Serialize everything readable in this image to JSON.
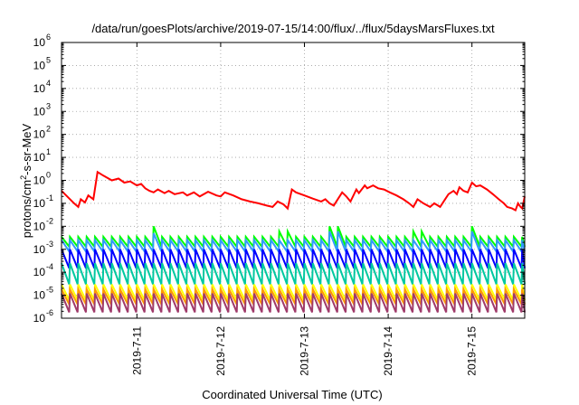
{
  "title": "/data/run/goesPlots/archive/2019-07-15/14:00/flux/../flux/5daysMarsFluxes.txt",
  "chart_data": {
    "type": "line",
    "title": "/data/run/goesPlots/archive/2019-07-15/14:00/flux/../flux/5daysMarsFluxes.txt",
    "xlabel": "Coordinated Universal Time (UTC)",
    "ylabel_parts": [
      "protons/cm",
      "2",
      "-s-sr-MeV"
    ],
    "yscale": "log",
    "ylim_exp": [
      -6,
      6
    ],
    "ytick_base": "10",
    "yticks_exp": [
      "-6",
      "-5",
      "-4",
      "-3",
      "-2",
      "-1",
      "0",
      "1",
      "2",
      "3",
      "4",
      "5",
      "6"
    ],
    "xlim_days": [
      10.1,
      15.63
    ],
    "xtick_days": [
      11,
      12,
      13,
      14,
      15
    ],
    "xtick_labels": [
      "2019-7-11",
      "2019-7-12",
      "2019-7-13",
      "2019-7-14",
      "2019-7-15"
    ],
    "grid": true,
    "series": [
      {
        "color": "#ff0000",
        "points": [
          [
            10.1,
            0.35
          ],
          [
            10.18,
            0.18
          ],
          [
            10.25,
            0.1
          ],
          [
            10.3,
            0.07
          ],
          [
            10.33,
            0.15
          ],
          [
            10.38,
            0.11
          ],
          [
            10.42,
            0.22
          ],
          [
            10.48,
            0.15
          ],
          [
            10.53,
            2.3
          ],
          [
            10.6,
            1.6
          ],
          [
            10.7,
            1.0
          ],
          [
            10.78,
            1.2
          ],
          [
            10.85,
            0.8
          ],
          [
            10.92,
            0.9
          ],
          [
            11.0,
            0.6
          ],
          [
            11.05,
            0.7
          ],
          [
            11.1,
            0.45
          ],
          [
            11.15,
            0.35
          ],
          [
            11.2,
            0.3
          ],
          [
            11.25,
            0.4
          ],
          [
            11.33,
            0.28
          ],
          [
            11.38,
            0.35
          ],
          [
            11.45,
            0.25
          ],
          [
            11.55,
            0.3
          ],
          [
            11.6,
            0.22
          ],
          [
            11.68,
            0.3
          ],
          [
            11.75,
            0.2
          ],
          [
            11.85,
            0.32
          ],
          [
            11.95,
            0.22
          ],
          [
            12.0,
            0.2
          ],
          [
            12.05,
            0.3
          ],
          [
            12.15,
            0.22
          ],
          [
            12.25,
            0.15
          ],
          [
            12.35,
            0.12
          ],
          [
            12.45,
            0.1
          ],
          [
            12.55,
            0.08
          ],
          [
            12.62,
            0.07
          ],
          [
            12.68,
            0.12
          ],
          [
            12.75,
            0.09
          ],
          [
            12.8,
            0.06
          ],
          [
            12.85,
            0.4
          ],
          [
            12.9,
            0.3
          ],
          [
            13.0,
            0.22
          ],
          [
            13.1,
            0.16
          ],
          [
            13.2,
            0.12
          ],
          [
            13.25,
            0.15
          ],
          [
            13.3,
            0.1
          ],
          [
            13.35,
            0.08
          ],
          [
            13.45,
            0.3
          ],
          [
            13.5,
            0.2
          ],
          [
            13.55,
            0.12
          ],
          [
            13.62,
            0.4
          ],
          [
            13.65,
            0.28
          ],
          [
            13.72,
            0.6
          ],
          [
            13.75,
            0.45
          ],
          [
            13.82,
            0.6
          ],
          [
            13.88,
            0.45
          ],
          [
            13.95,
            0.4
          ],
          [
            14.02,
            0.3
          ],
          [
            14.1,
            0.22
          ],
          [
            14.18,
            0.15
          ],
          [
            14.25,
            0.1
          ],
          [
            14.3,
            0.07
          ],
          [
            14.35,
            0.15
          ],
          [
            14.42,
            0.1
          ],
          [
            14.5,
            0.07
          ],
          [
            14.55,
            0.1
          ],
          [
            14.62,
            0.07
          ],
          [
            14.68,
            0.15
          ],
          [
            14.72,
            0.25
          ],
          [
            14.78,
            0.35
          ],
          [
            14.82,
            0.25
          ],
          [
            14.85,
            0.5
          ],
          [
            14.9,
            0.35
          ],
          [
            14.95,
            0.3
          ],
          [
            15.0,
            0.8
          ],
          [
            15.05,
            0.55
          ],
          [
            15.1,
            0.6
          ],
          [
            15.18,
            0.4
          ],
          [
            15.25,
            0.25
          ],
          [
            15.32,
            0.15
          ],
          [
            15.38,
            0.1
          ],
          [
            15.42,
            0.07
          ],
          [
            15.48,
            0.06
          ],
          [
            15.52,
            0.05
          ],
          [
            15.55,
            0.1
          ],
          [
            15.58,
            0.07
          ],
          [
            15.6,
            0.06
          ],
          [
            15.63,
            0.2
          ]
        ]
      },
      {
        "color": "#00ff00",
        "sawtooth": true,
        "start": 10.1,
        "end": 15.63,
        "period": 0.1,
        "base_high": 0.0035,
        "base_low": 0.0013,
        "spikes": [
          [
            11.2,
            0.01
          ],
          [
            12.75,
            0.006
          ],
          [
            13.35,
            0.01
          ],
          [
            14.35,
            0.006
          ],
          [
            15.0,
            0.01
          ]
        ]
      },
      {
        "color": "#3399ff",
        "sawtooth": true,
        "start": 10.1,
        "end": 15.63,
        "period": 0.1,
        "base_high": 0.0025,
        "base_low": 0.0008,
        "spikes": [
          [
            11.2,
            0.005
          ],
          [
            13.35,
            0.006
          ],
          [
            15.0,
            0.006
          ]
        ]
      },
      {
        "color": "#0000ff",
        "sawtooth": true,
        "start": 10.1,
        "end": 15.63,
        "period": 0.1,
        "base_high": 0.001,
        "base_low": 0.00015,
        "spikes": []
      },
      {
        "color": "#00c8a0",
        "sawtooth": true,
        "start": 10.1,
        "end": 15.63,
        "period": 0.1,
        "base_high": 0.00025,
        "base_low": 3e-05,
        "spikes": []
      },
      {
        "color": "#ffff00",
        "sawtooth": true,
        "start": 10.1,
        "end": 15.63,
        "period": 0.1,
        "base_high": 3e-05,
        "base_low": 6e-06,
        "spikes": []
      },
      {
        "color": "#ff9900",
        "sawtooth": true,
        "start": 10.1,
        "end": 15.63,
        "period": 0.1,
        "base_high": 1.8e-05,
        "base_low": 4e-06,
        "spikes": []
      },
      {
        "color": "#a03a6a",
        "sawtooth": true,
        "start": 10.1,
        "end": 15.63,
        "period": 0.1,
        "base_high": 1.2e-05,
        "base_low": 1.8e-06,
        "spikes": []
      }
    ]
  }
}
